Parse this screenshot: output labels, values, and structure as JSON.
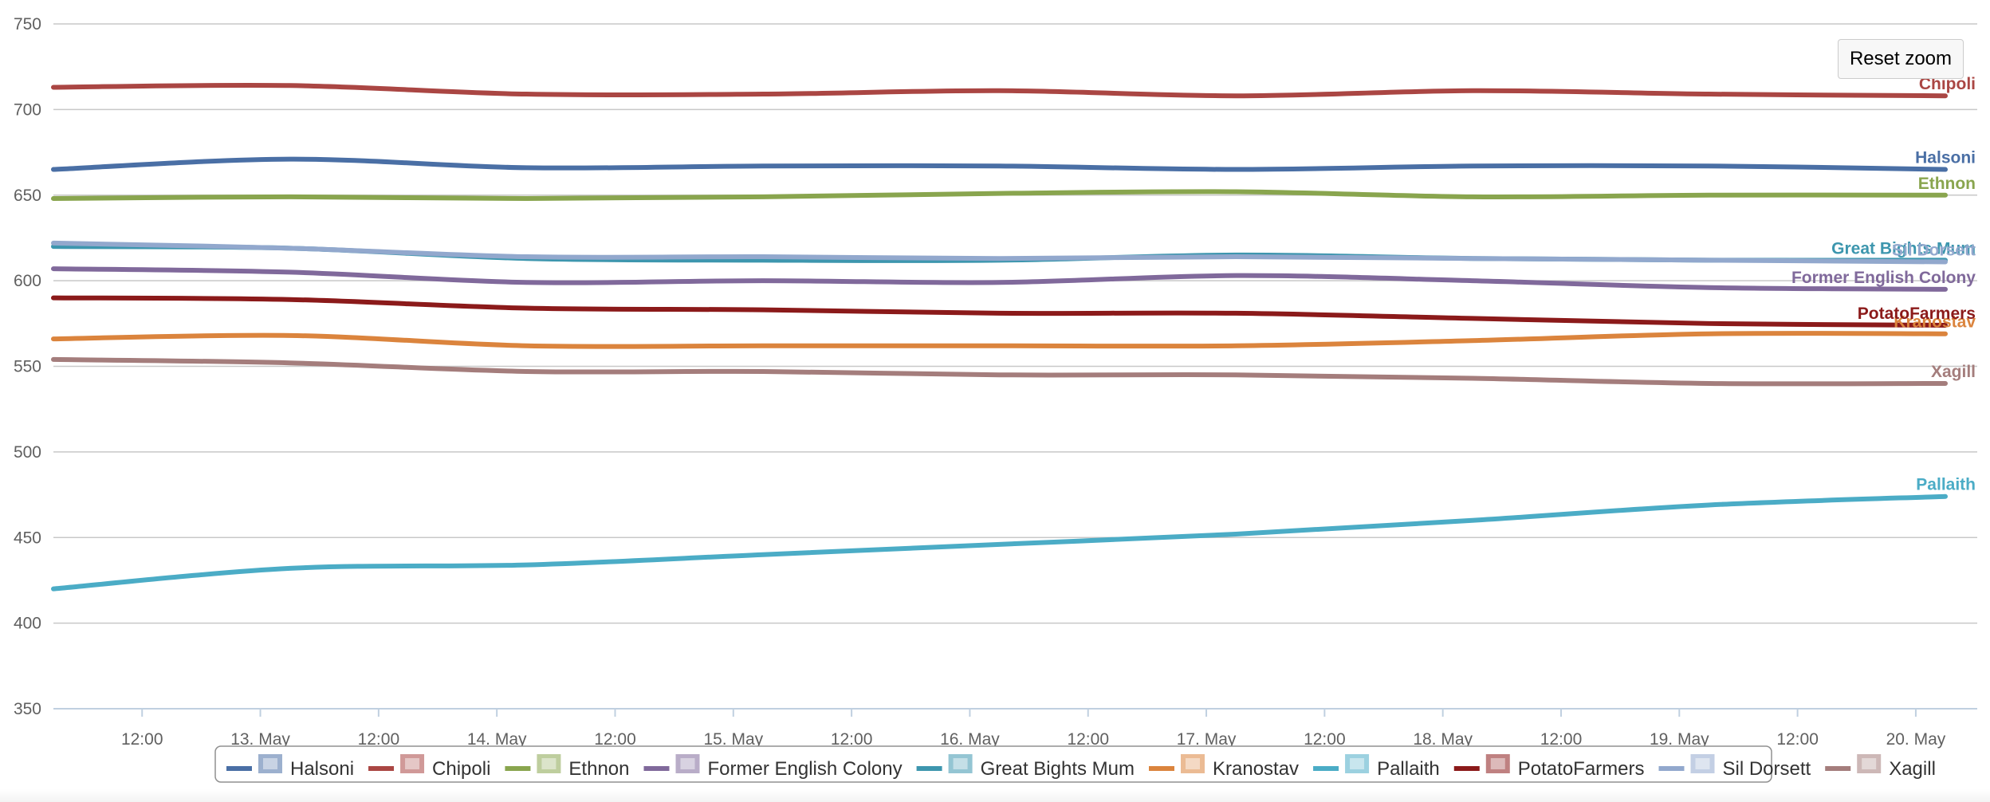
{
  "reset_zoom_label": "Reset zoom",
  "chart_data": {
    "type": "line",
    "title": "",
    "xlabel": "",
    "ylabel": "",
    "ylim": [
      350,
      750
    ],
    "y_ticks": [
      350,
      400,
      450,
      500,
      550,
      600,
      650,
      700,
      750
    ],
    "x_start": "12 May 03:00",
    "x_end": "20 May 03:00",
    "x_tick_labels": [
      "12:00",
      "13. May",
      "12:00",
      "14. May",
      "12:00",
      "15. May",
      "12:00",
      "16. May",
      "12:00",
      "17. May",
      "12:00",
      "18. May",
      "12:00",
      "19. May",
      "12:00",
      "20. May"
    ],
    "x_ticks_hours": [
      9,
      21,
      33,
      45,
      57,
      69,
      81,
      93,
      105,
      117,
      129,
      141,
      153,
      165,
      177,
      189
    ],
    "x_hours": [
      0,
      24,
      48,
      72,
      96,
      120,
      144,
      168,
      192
    ],
    "grid": true,
    "legend_position": "bottom",
    "series": [
      {
        "name": "Halsoni",
        "color": "#4a6fa5",
        "values": [
          665,
          671,
          666,
          667,
          667,
          665,
          667,
          667,
          665
        ]
      },
      {
        "name": "Chipoli",
        "color": "#aa4643",
        "values": [
          713,
          714,
          709,
          709,
          711,
          708,
          711,
          709,
          708
        ]
      },
      {
        "name": "Ethnon",
        "color": "#89a54e",
        "values": [
          648,
          649,
          648,
          649,
          651,
          652,
          649,
          650,
          650
        ]
      },
      {
        "name": "Former English Colony",
        "color": "#80699b",
        "values": [
          607,
          605,
          599,
          600,
          599,
          603,
          600,
          596,
          595
        ]
      },
      {
        "name": "Great Bights Mum",
        "color": "#3d96ae",
        "values": [
          620,
          619,
          613,
          612,
          612,
          615,
          613,
          612,
          612
        ]
      },
      {
        "name": "Kranostav",
        "color": "#db843d",
        "values": [
          566,
          568,
          562,
          562,
          562,
          562,
          565,
          569,
          569
        ]
      },
      {
        "name": "Pallaith",
        "color": "#4bacc6",
        "values": [
          420,
          432,
          434,
          440,
          446,
          452,
          460,
          469,
          474
        ]
      },
      {
        "name": "PotatoFarmers",
        "color": "#8b1a1a",
        "values": [
          590,
          589,
          584,
          583,
          581,
          581,
          578,
          575,
          574
        ]
      },
      {
        "name": "Sil Dorsett",
        "color": "#92a8cd",
        "values": [
          622,
          619,
          614,
          614,
          613,
          614,
          613,
          612,
          611
        ]
      },
      {
        "name": "Xagill",
        "color": "#a47d7c",
        "values": [
          554,
          552,
          547,
          547,
          545,
          545,
          543,
          540,
          540
        ]
      }
    ]
  }
}
